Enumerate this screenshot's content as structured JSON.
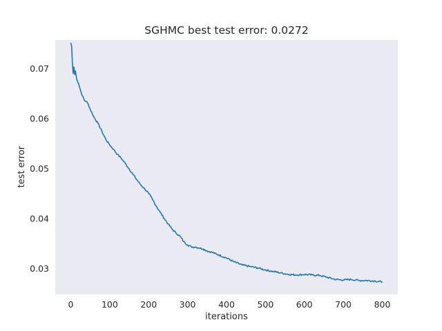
{
  "chart_data": {
    "type": "line",
    "title": "SGHMC best test error: 0.0272",
    "xlabel": "iterations",
    "ylabel": "test error",
    "xlim": [
      -40,
      840
    ],
    "ylim": [
      0.0248,
      0.0757
    ],
    "grid": false,
    "background": "#eaeaf2",
    "xticks": [
      0,
      100,
      200,
      300,
      400,
      500,
      600,
      700,
      800
    ],
    "xtick_labels": [
      "0",
      "100",
      "200",
      "300",
      "400",
      "500",
      "600",
      "700",
      "800"
    ],
    "yticks": [
      0.03,
      0.04,
      0.05,
      0.06,
      0.07
    ],
    "ytick_labels": [
      "0.03",
      "0.04",
      "0.05",
      "0.06",
      "0.07"
    ],
    "series": [
      {
        "color": "#1f77b4",
        "x": [
          0,
          2,
          4,
          6,
          8,
          10,
          12,
          15,
          20,
          25,
          30,
          35,
          40,
          45,
          50,
          55,
          60,
          70,
          80,
          90,
          100,
          110,
          120,
          130,
          140,
          150,
          160,
          170,
          180,
          190,
          200,
          210,
          220,
          230,
          240,
          250,
          260,
          270,
          280,
          290,
          300,
          310,
          320,
          330,
          340,
          350,
          360,
          380,
          400,
          420,
          440,
          460,
          480,
          500,
          520,
          540,
          560,
          580,
          600,
          620,
          640,
          660,
          680,
          700,
          720,
          740,
          760,
          780,
          800
        ],
        "y": [
          0.0751,
          0.0745,
          0.0712,
          0.069,
          0.0703,
          0.0688,
          0.0695,
          0.0678,
          0.067,
          0.0656,
          0.0645,
          0.0636,
          0.0634,
          0.0628,
          0.0618,
          0.061,
          0.0602,
          0.059,
          0.0574,
          0.0558,
          0.0547,
          0.0538,
          0.0528,
          0.052,
          0.051,
          0.0499,
          0.0488,
          0.0477,
          0.0467,
          0.0459,
          0.045,
          0.0438,
          0.0424,
          0.0412,
          0.04,
          0.0389,
          0.0379,
          0.0371,
          0.0365,
          0.0354,
          0.0347,
          0.0343,
          0.0343,
          0.0341,
          0.0339,
          0.0335,
          0.0333,
          0.0327,
          0.0321,
          0.0313,
          0.0307,
          0.0304,
          0.0301,
          0.0297,
          0.0294,
          0.0291,
          0.0288,
          0.0287,
          0.0288,
          0.0287,
          0.0286,
          0.0282,
          0.0278,
          0.0277,
          0.0278,
          0.0276,
          0.0276,
          0.0275,
          0.0273
        ]
      }
    ]
  }
}
